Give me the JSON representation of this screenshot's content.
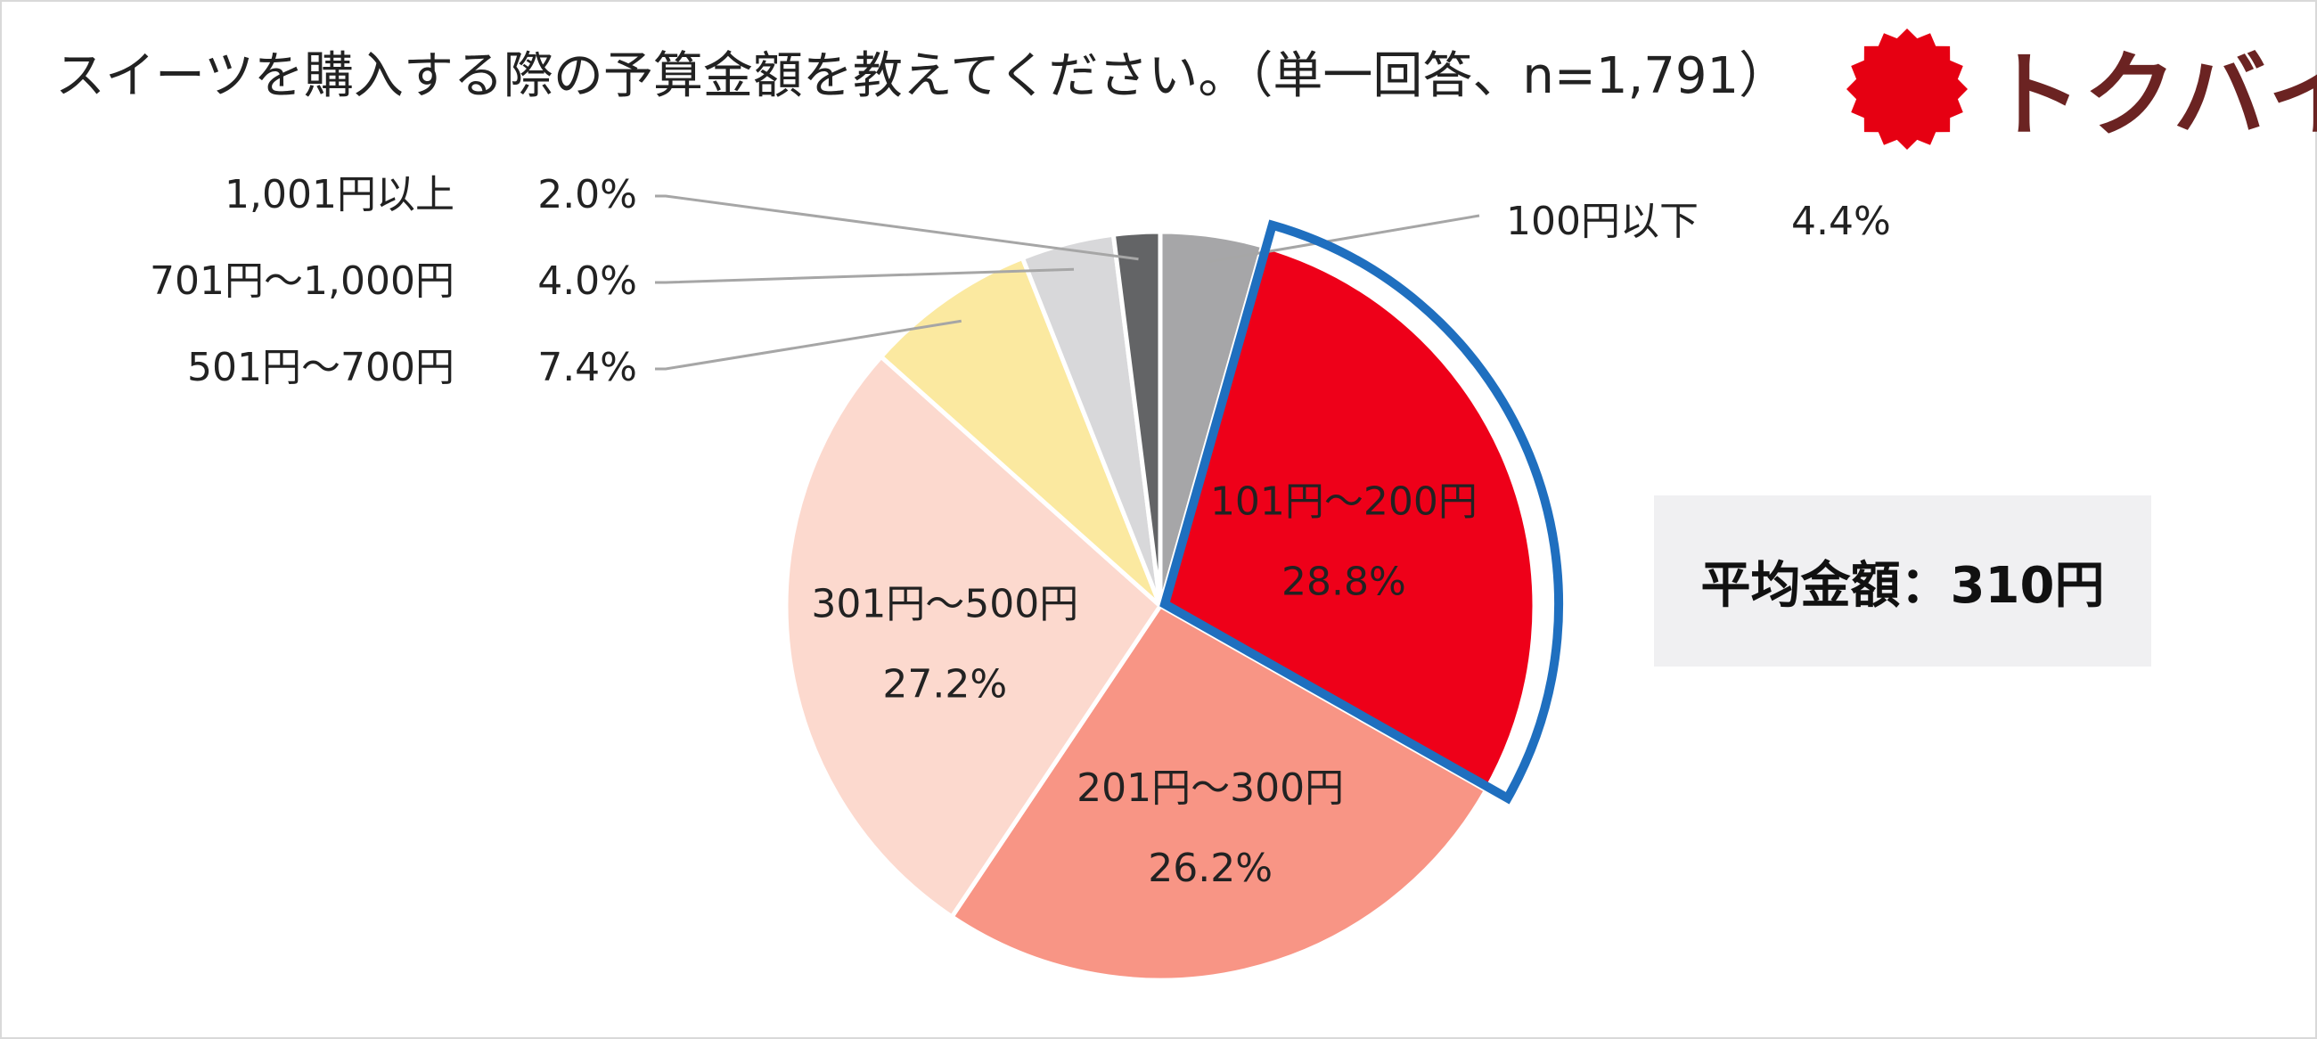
{
  "title": "スイーツを購入する際の予算金額を教えてください。（単一回答、n=1,791）",
  "logo": {
    "text": "トクバイ",
    "mark_color": "#e60012",
    "text_color": "#6b2322"
  },
  "average": {
    "text": "平均金額：310円"
  },
  "highlight_color": "#1f6fbf",
  "chart_data": {
    "type": "pie",
    "title": "スイーツを購入する際の予算金額を教えてください。（単一回答、n=1,791）",
    "unit": "%",
    "slices": [
      {
        "label": "100円以下",
        "pct": "4.4%",
        "value": 4.4,
        "color": "#a6a6a8"
      },
      {
        "label": "101円～200円",
        "pct": "28.8%",
        "value": 28.8,
        "color": "#ee0019",
        "highlighted": true
      },
      {
        "label": "201円～300円",
        "pct": "26.2%",
        "value": 26.2,
        "color": "#f89585"
      },
      {
        "label": "301円～500円",
        "pct": "27.2%",
        "value": 27.2,
        "color": "#fcd9ce"
      },
      {
        "label": "501円～700円",
        "pct": "7.4%",
        "value": 7.4,
        "color": "#fbe9a0"
      },
      {
        "label": "701円～1,000円",
        "pct": "4.0%",
        "value": 4.0,
        "color": "#d8d8da"
      },
      {
        "label": "1,001円以上",
        "pct": "2.0%",
        "value": 2.0,
        "color": "#636466"
      }
    ]
  }
}
